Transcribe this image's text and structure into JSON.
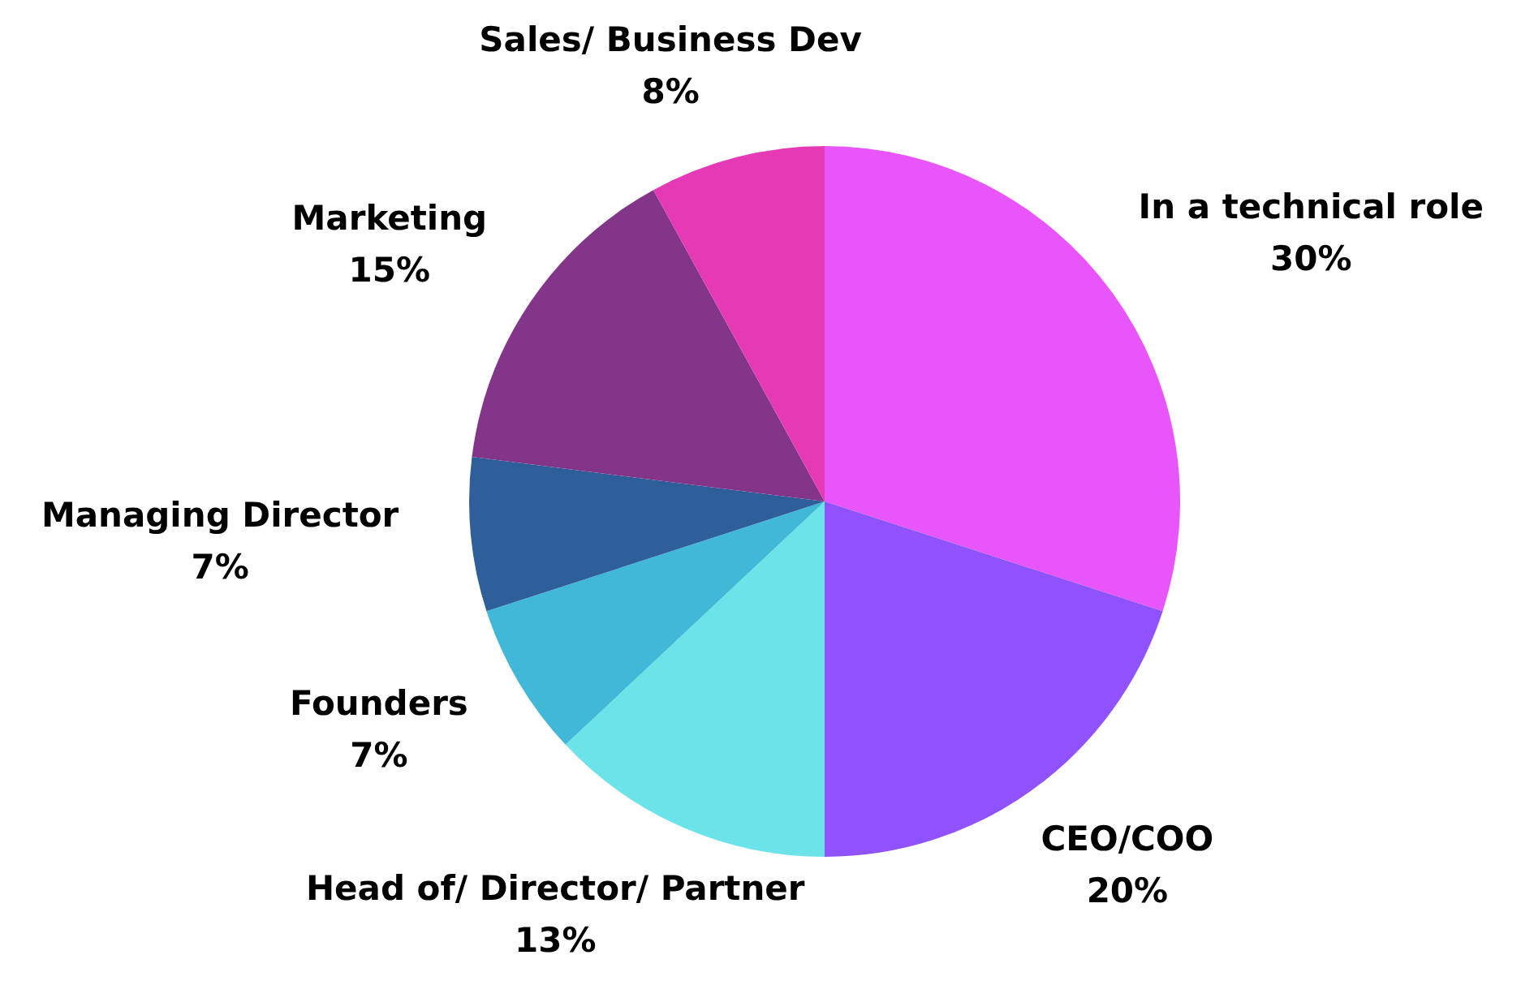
{
  "chart_data": {
    "type": "pie",
    "categories": [
      "In a technical role",
      "CEO/COO",
      "Head of/ Director/ Partner",
      "Founders",
      "Managing Director",
      "Marketing",
      "Sales/ Business Dev"
    ],
    "values": [
      30,
      20,
      13,
      7,
      7,
      15,
      8
    ],
    "colors": [
      "#e855fa",
      "#8f52fc",
      "#6be3e8",
      "#42b8d8",
      "#2e5f9a",
      "#833589",
      "#e539b5"
    ],
    "value_labels": [
      "30%",
      "20%",
      "13%",
      "7%",
      "7%",
      "15%",
      "8%"
    ],
    "legend": false
  }
}
